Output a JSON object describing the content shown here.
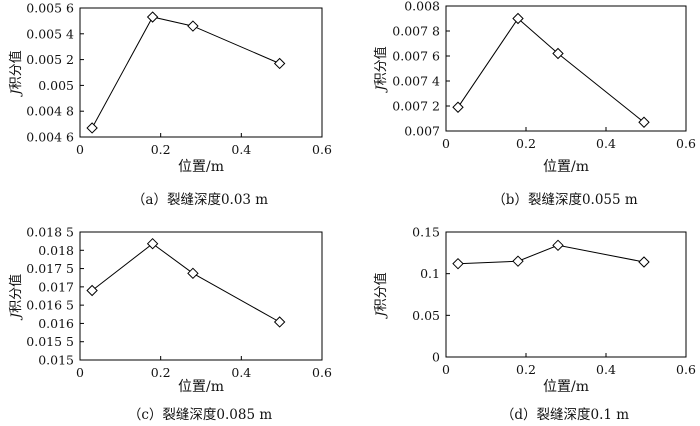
{
  "chart_data": [
    {
      "type": "line",
      "caption": "（a）裂缝深度0.03 m",
      "xlabel": "位置/m",
      "ylabel_italic": "J",
      "ylabel_rest": "积分值",
      "xlim": [
        0,
        0.6
      ],
      "ylim": [
        0.0046,
        0.0056
      ],
      "xticks": [
        0,
        0.2,
        0.4,
        0.6
      ],
      "xtick_labels": [
        "0",
        "0.2",
        "0.4",
        "0.6"
      ],
      "yticks": [
        0.0046,
        0.0048,
        0.005,
        0.0052,
        0.0054,
        0.0056
      ],
      "ytick_labels": [
        "0.004 6",
        "0.004 8",
        "0.005",
        "0.005 2",
        "0.005 4",
        "0.005 6"
      ],
      "marker": "diamond",
      "x": [
        0.03,
        0.18,
        0.28,
        0.495
      ],
      "y": [
        0.00467,
        0.00553,
        0.00546,
        0.00517
      ]
    },
    {
      "type": "line",
      "caption": "（b）裂缝深度0.055 m",
      "xlabel": "位置/m",
      "ylabel_italic": "J",
      "ylabel_rest": "积分值",
      "xlim": [
        0,
        0.6
      ],
      "ylim": [
        0.007,
        0.008
      ],
      "xticks": [
        0,
        0.2,
        0.4,
        0.6
      ],
      "xtick_labels": [
        "0",
        "0.2",
        "0.4",
        "0.6"
      ],
      "yticks": [
        0.007,
        0.0072,
        0.0074,
        0.0076,
        0.0078,
        0.008
      ],
      "ytick_labels": [
        "0.007",
        "0.007 2",
        "0.007 4",
        "0.007 6",
        "0.007 8",
        "0.008"
      ],
      "marker": "diamond",
      "x": [
        0.03,
        0.18,
        0.28,
        0.495
      ],
      "y": [
        0.00719,
        0.0079,
        0.00762,
        0.00707
      ]
    },
    {
      "type": "line",
      "caption": "（c）裂缝深度0.085 m",
      "xlabel": "位置/m",
      "ylabel_italic": "J",
      "ylabel_rest": "积分值",
      "xlim": [
        0,
        0.6
      ],
      "ylim": [
        0.015,
        0.0185
      ],
      "xticks": [
        0,
        0.2,
        0.4,
        0.6
      ],
      "xtick_labels": [
        "0",
        "0.2",
        "0.4",
        "0.6"
      ],
      "yticks": [
        0.015,
        0.0155,
        0.016,
        0.0165,
        0.017,
        0.0175,
        0.018,
        0.0185
      ],
      "ytick_labels": [
        "0.015",
        "0.015 5",
        "0.016",
        "0.016 5",
        "0.017",
        "0.017 5",
        "0.018",
        "0.018 5"
      ],
      "marker": "diamond",
      "x": [
        0.03,
        0.18,
        0.28,
        0.495
      ],
      "y": [
        0.0169,
        0.01818,
        0.01737,
        0.01604
      ]
    },
    {
      "type": "line",
      "caption": "（d）裂缝深度0.1 m",
      "xlabel": "位置/m",
      "ylabel_italic": "J",
      "ylabel_rest": "积分值",
      "xlim": [
        0,
        0.6
      ],
      "ylim": [
        0,
        0.15
      ],
      "xticks": [
        0,
        0.2,
        0.4,
        0.6
      ],
      "xtick_labels": [
        "0",
        "0.2",
        "0.4",
        "0.6"
      ],
      "yticks": [
        0,
        0.05,
        0.1,
        0.15
      ],
      "ytick_labels": [
        "0",
        "0.05",
        "0.1",
        "0.15"
      ],
      "marker": "diamond",
      "x": [
        0.03,
        0.18,
        0.28,
        0.495
      ],
      "y": [
        0.112,
        0.115,
        0.134,
        0.114
      ]
    }
  ]
}
